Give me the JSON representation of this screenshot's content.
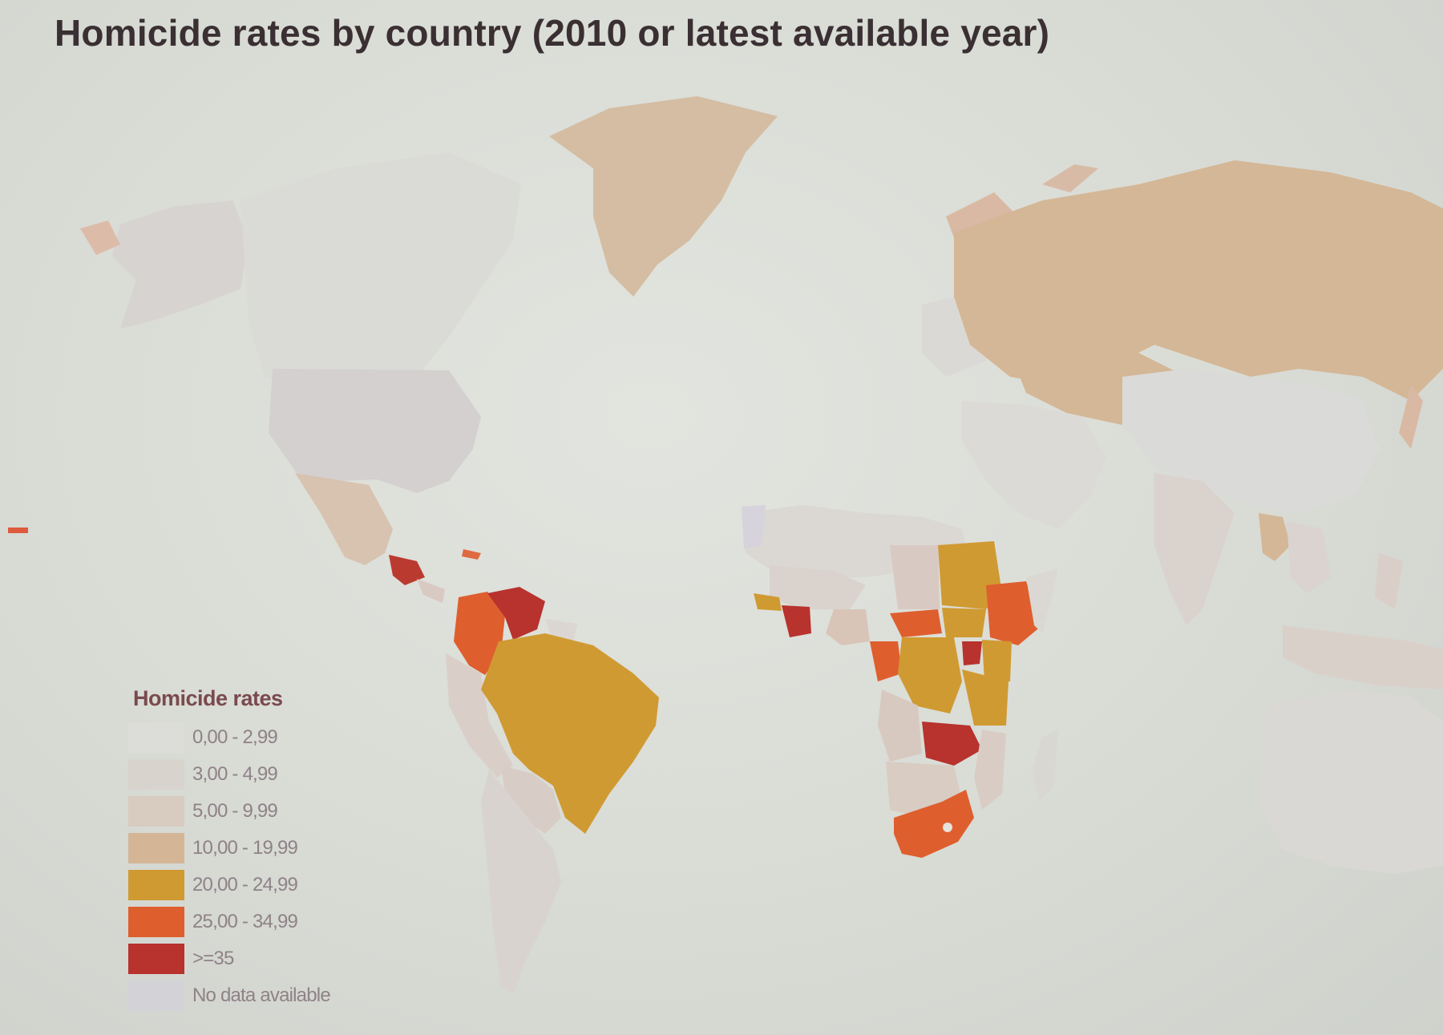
{
  "title": "Homicide rates by country (2010 or latest available year)",
  "legend": {
    "title": "Homicide rates",
    "items": [
      {
        "label": "0,00 - 2,99",
        "color": "#dcdcd8"
      },
      {
        "label": "3,00 - 4,99",
        "color": "#d8d3cd"
      },
      {
        "label": "5,00 - 9,99",
        "color": "#d8cbc0"
      },
      {
        "label": "10,00 - 19,99",
        "color": "#d4b697"
      },
      {
        "label": "20,00 - 24,99",
        "color": "#d09a32"
      },
      {
        "label": "25,00 - 34,99",
        "color": "#df5e2e"
      },
      {
        "label": ">=35",
        "color": "#b8322e"
      },
      {
        "label": "No data available",
        "color": "#d3d2d6"
      }
    ]
  }
}
